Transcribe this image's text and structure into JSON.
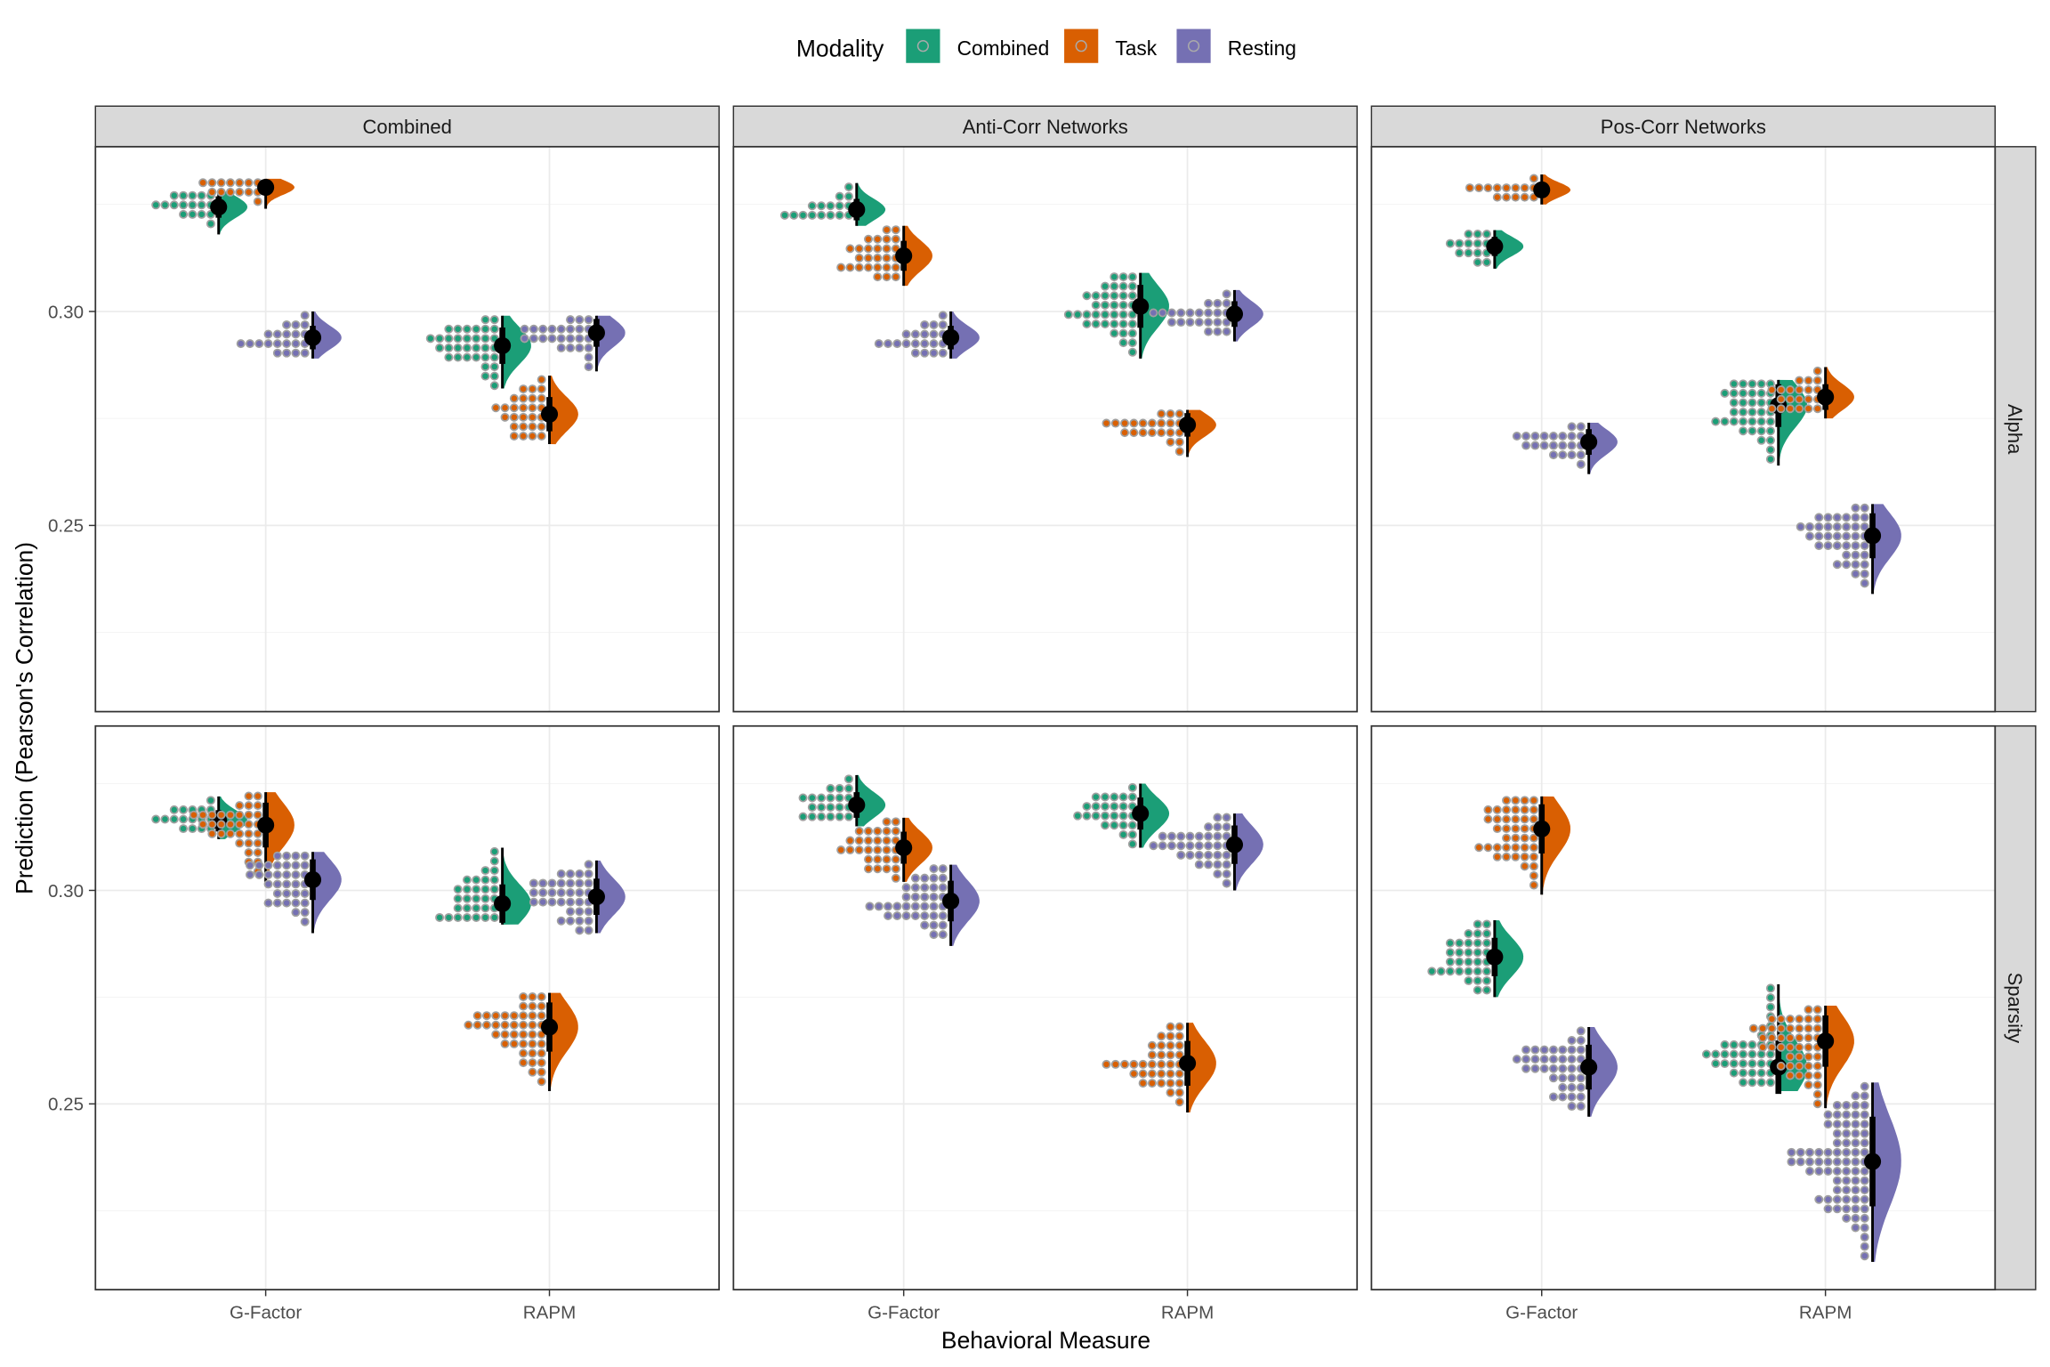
{
  "chart_data": {
    "type": "raincloud",
    "legend": {
      "title": "Modality",
      "position": "top",
      "entries": [
        "Combined",
        "Task",
        "Resting"
      ]
    },
    "colors": {
      "Combined": "#1B9E77",
      "Task": "#D95F02",
      "Resting": "#7570B3"
    },
    "xlabel": "Behavioral Measure",
    "ylabel": "Prediction (Pearson's Correlation)",
    "x_categories": [
      "G-Factor",
      "RAPM"
    ],
    "columns": [
      "Combined",
      "Anti-Corr Networks",
      "Pos-Corr Networks"
    ],
    "rows": [
      "Alpha",
      "Sparsity"
    ],
    "ylim": [
      0.2065,
      0.3385
    ],
    "y_ticks": [
      "0.25",
      "0.30"
    ],
    "y_tick_values": [
      0.25,
      0.3
    ],
    "grid": true,
    "panels": [
      {
        "row": "Alpha",
        "column": "Combined",
        "series": [
          {
            "measure": "G-Factor",
            "modality": "Combined",
            "median": 0.3244,
            "min": 0.318,
            "max": 0.328
          },
          {
            "measure": "G-Factor",
            "modality": "Task",
            "median": 0.329,
            "min": 0.324,
            "max": 0.331
          },
          {
            "measure": "G-Factor",
            "modality": "Resting",
            "median": 0.2939,
            "min": 0.289,
            "max": 0.3
          },
          {
            "measure": "RAPM",
            "modality": "Combined",
            "median": 0.292,
            "min": 0.282,
            "max": 0.299
          },
          {
            "measure": "RAPM",
            "modality": "Task",
            "median": 0.276,
            "min": 0.269,
            "max": 0.285
          },
          {
            "measure": "RAPM",
            "modality": "Resting",
            "median": 0.295,
            "min": 0.286,
            "max": 0.299
          }
        ]
      },
      {
        "row": "Alpha",
        "column": "Anti-Corr Networks",
        "series": [
          {
            "measure": "G-Factor",
            "modality": "Combined",
            "median": 0.3238,
            "min": 0.32,
            "max": 0.33
          },
          {
            "measure": "G-Factor",
            "modality": "Task",
            "median": 0.313,
            "min": 0.306,
            "max": 0.32
          },
          {
            "measure": "G-Factor",
            "modality": "Resting",
            "median": 0.2939,
            "min": 0.289,
            "max": 0.3
          },
          {
            "measure": "RAPM",
            "modality": "Combined",
            "median": 0.3012,
            "min": 0.289,
            "max": 0.309
          },
          {
            "measure": "RAPM",
            "modality": "Task",
            "median": 0.2735,
            "min": 0.266,
            "max": 0.277
          },
          {
            "measure": "RAPM",
            "modality": "Resting",
            "median": 0.2994,
            "min": 0.293,
            "max": 0.305
          }
        ]
      },
      {
        "row": "Alpha",
        "column": "Pos-Corr Networks",
        "series": [
          {
            "measure": "G-Factor",
            "modality": "Combined",
            "median": 0.3152,
            "min": 0.31,
            "max": 0.319
          },
          {
            "measure": "G-Factor",
            "modality": "Task",
            "median": 0.3284,
            "min": 0.325,
            "max": 0.332
          },
          {
            "measure": "G-Factor",
            "modality": "Resting",
            "median": 0.2695,
            "min": 0.262,
            "max": 0.274
          },
          {
            "measure": "RAPM",
            "modality": "Combined",
            "median": 0.278,
            "min": 0.264,
            "max": 0.284
          },
          {
            "measure": "RAPM",
            "modality": "Task",
            "median": 0.28,
            "min": 0.275,
            "max": 0.287
          },
          {
            "measure": "RAPM",
            "modality": "Resting",
            "median": 0.2476,
            "min": 0.234,
            "max": 0.255
          }
        ]
      },
      {
        "row": "Sparsity",
        "column": "Combined",
        "series": [
          {
            "measure": "G-Factor",
            "modality": "Combined",
            "median": 0.3163,
            "min": 0.312,
            "max": 0.322
          },
          {
            "measure": "G-Factor",
            "modality": "Task",
            "median": 0.3153,
            "min": 0.302,
            "max": 0.323
          },
          {
            "measure": "G-Factor",
            "modality": "Resting",
            "median": 0.3025,
            "min": 0.29,
            "max": 0.309
          },
          {
            "measure": "RAPM",
            "modality": "Combined",
            "median": 0.2969,
            "min": 0.292,
            "max": 0.31
          },
          {
            "measure": "RAPM",
            "modality": "Task",
            "median": 0.268,
            "min": 0.253,
            "max": 0.276
          },
          {
            "measure": "RAPM",
            "modality": "Resting",
            "median": 0.2985,
            "min": 0.29,
            "max": 0.307
          }
        ]
      },
      {
        "row": "Sparsity",
        "column": "Anti-Corr Networks",
        "series": [
          {
            "measure": "G-Factor",
            "modality": "Combined",
            "median": 0.32,
            "min": 0.315,
            "max": 0.327
          },
          {
            "measure": "G-Factor",
            "modality": "Task",
            "median": 0.31,
            "min": 0.302,
            "max": 0.317
          },
          {
            "measure": "G-Factor",
            "modality": "Resting",
            "median": 0.2975,
            "min": 0.287,
            "max": 0.306
          },
          {
            "measure": "RAPM",
            "modality": "Combined",
            "median": 0.318,
            "min": 0.31,
            "max": 0.325
          },
          {
            "measure": "RAPM",
            "modality": "Task",
            "median": 0.2595,
            "min": 0.248,
            "max": 0.269
          },
          {
            "measure": "RAPM",
            "modality": "Resting",
            "median": 0.3107,
            "min": 0.3,
            "max": 0.318
          }
        ]
      },
      {
        "row": "Sparsity",
        "column": "Pos-Corr Networks",
        "series": [
          {
            "measure": "G-Factor",
            "modality": "Combined",
            "median": 0.2844,
            "min": 0.275,
            "max": 0.293
          },
          {
            "measure": "G-Factor",
            "modality": "Task",
            "median": 0.3144,
            "min": 0.299,
            "max": 0.322
          },
          {
            "measure": "G-Factor",
            "modality": "Resting",
            "median": 0.2586,
            "min": 0.247,
            "max": 0.268
          },
          {
            "measure": "RAPM",
            "modality": "Combined",
            "median": 0.2586,
            "min": 0.253,
            "max": 0.278
          },
          {
            "measure": "RAPM",
            "modality": "Task",
            "median": 0.2647,
            "min": 0.249,
            "max": 0.273
          },
          {
            "measure": "RAPM",
            "modality": "Resting",
            "median": 0.2365,
            "min": 0.213,
            "max": 0.255
          }
        ]
      }
    ]
  }
}
